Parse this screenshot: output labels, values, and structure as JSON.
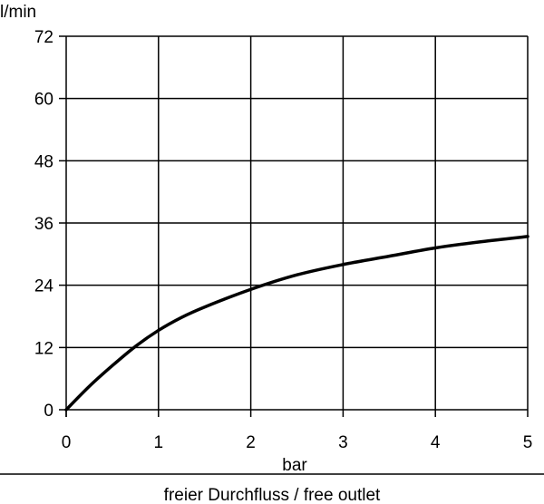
{
  "chart_data": {
    "type": "line",
    "title": "",
    "xlabel": "bar",
    "ylabel": "l/min",
    "caption": "freier Durchfluss / free outlet",
    "x_ticks": [
      "0",
      "1",
      "2",
      "3",
      "4",
      "5"
    ],
    "y_ticks": [
      "0",
      "12",
      "24",
      "36",
      "48",
      "60",
      "72"
    ],
    "xlim": [
      0,
      5
    ],
    "ylim": [
      0,
      72
    ],
    "grid": true,
    "series": [
      {
        "x": [
          0,
          0.25,
          0.5,
          0.75,
          1.0,
          1.25,
          1.5,
          2.0,
          2.5,
          3.0,
          3.5,
          4.0,
          4.5,
          5.0
        ],
        "y": [
          0,
          4.5,
          8.5,
          12.2,
          15.3,
          17.8,
          19.8,
          23.2,
          26.0,
          28.0,
          29.6,
          31.2,
          32.4,
          33.4
        ]
      }
    ],
    "colors": {
      "line": "#000000",
      "grid": "#000000"
    }
  }
}
